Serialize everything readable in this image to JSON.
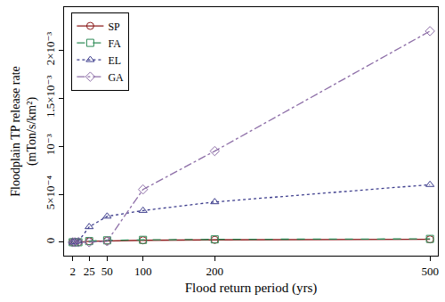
{
  "chart_data": {
    "type": "line",
    "x_label": "Flood return period (yrs)",
    "y_label": "Floodplain TP release rate (mTon/s/km²)",
    "x": [
      2,
      5,
      10,
      25,
      50,
      100,
      200,
      500
    ],
    "series": [
      {
        "name": "SP",
        "color": "#8b1a1a",
        "marker": "circle",
        "line_style": "solid",
        "values": [
          0,
          0,
          0,
          1e-05,
          1.5e-05,
          2e-05,
          2.5e-05,
          3e-05
        ]
      },
      {
        "name": "FA",
        "color": "#2e8b57",
        "marker": "square",
        "line_style": "dash",
        "values": [
          0,
          0,
          0,
          1.2e-05,
          2e-05,
          2.5e-05,
          3e-05,
          3.5e-05
        ]
      },
      {
        "name": "EL",
        "color": "#3c3c8c",
        "marker": "triangle-up",
        "line_style": "dot",
        "values": [
          0,
          5e-06,
          1e-05,
          0.00016,
          0.00027,
          0.00033,
          0.00042,
          0.0006
        ]
      },
      {
        "name": "GA",
        "color": "#8e6fa8",
        "marker": "diamond",
        "line_style": "dashdot",
        "values": [
          0,
          0,
          0,
          0,
          1e-05,
          0.00055,
          0.00095,
          0.0022
        ]
      }
    ],
    "xlim": [
      -10,
      511
    ],
    "xticks": [
      2,
      25,
      50,
      100,
      200,
      500
    ],
    "ylim": [
      -0.00014,
      0.00245
    ],
    "yticks": [
      0,
      {
        "value": 0.0005,
        "label": "5×10⁻⁴"
      },
      {
        "value": 0.001,
        "label": "10⁻³"
      },
      {
        "value": 0.0015,
        "label": "1.5×10⁻³"
      },
      {
        "value": 0.002,
        "label": "2×10⁻³"
      }
    ],
    "grid": false,
    "legend": "upper left"
  }
}
